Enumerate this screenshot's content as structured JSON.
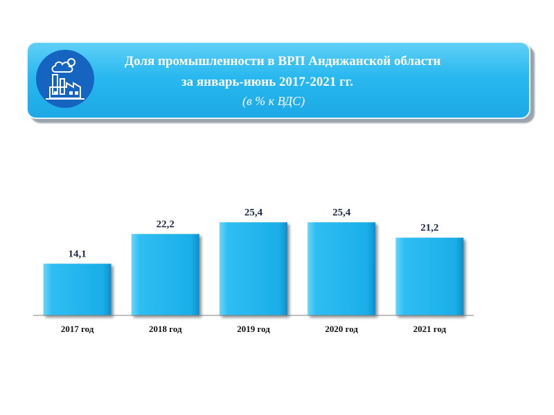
{
  "header": {
    "title_line1": "Доля промышленности в ВРП Андижанской области",
    "title_line2": "за январь-июнь 2017-2021 гг.",
    "subtitle": "(в % к ВДС)",
    "icon": "factory-icon"
  },
  "colors": {
    "banner": "#29b8ef",
    "bar": "#1db3ee",
    "bar_label": "#1f2a44"
  },
  "chart_data": {
    "type": "bar",
    "title": "Доля промышленности в ВРП Андижанской области за январь-июнь 2017-2021 гг.",
    "subtitle": "(в % к ВДС)",
    "categories": [
      "2017 год",
      "2018 год",
      "2019 год",
      "2020 год",
      "2021 год"
    ],
    "values": [
      14.1,
      22.2,
      25.4,
      25.4,
      21.2
    ],
    "value_labels": [
      "14,1",
      "22,2",
      "25,4",
      "25,4",
      "21,2"
    ],
    "xlabel": "",
    "ylabel": "",
    "ylim": [
      0,
      30
    ],
    "grid": false,
    "legend": "none"
  }
}
